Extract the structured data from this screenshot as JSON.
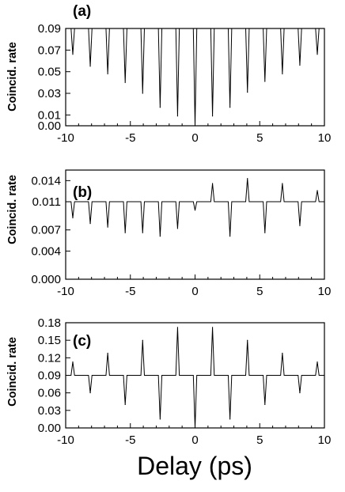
{
  "figure": {
    "xlabel": "Delay (ps)"
  },
  "chart_data": [
    {
      "type": "line",
      "panel_label": "(a)",
      "ylabel": "Coincid. rate",
      "xlim": [
        -10,
        10
      ],
      "ylim": [
        0,
        0.09
      ],
      "xticks": [
        "-10",
        "-5",
        "0",
        "5",
        "10"
      ],
      "yticks": [
        "0.00",
        "0.01",
        "0.03",
        "0.05",
        "0.07",
        "0.09"
      ],
      "ytick_values": [
        0.0,
        0.01,
        0.03,
        0.05,
        0.07,
        0.09
      ],
      "baseline": 0.09,
      "grid": false,
      "series": [
        {
          "x": [
            -9.45,
            -8.1,
            -6.75,
            -5.4,
            -4.05,
            -2.7,
            -1.35,
            0.0,
            1.35,
            2.7,
            4.05,
            5.4,
            6.75,
            8.1,
            9.45
          ],
          "y": [
            0.066,
            0.055,
            0.048,
            0.04,
            0.03,
            0.017,
            0.009,
            0.0,
            0.009,
            0.017,
            0.031,
            0.041,
            0.048,
            0.056,
            0.066
          ]
        }
      ]
    },
    {
      "type": "line",
      "panel_label": "(b)",
      "ylabel": "Coincid. rate",
      "xlim": [
        -10,
        10
      ],
      "ylim": [
        0,
        0.0155
      ],
      "xticks": [
        "-10",
        "-5",
        "0",
        "5",
        "10"
      ],
      "yticks": [
        "0.000",
        "0.004",
        "0.007",
        "0.011",
        "0.014"
      ],
      "ytick_values": [
        0.0,
        0.004,
        0.007,
        0.011,
        0.014
      ],
      "baseline": 0.011,
      "grid": false,
      "series": [
        {
          "x": [
            -9.45,
            -8.1,
            -6.75,
            -5.4,
            -4.05,
            -2.7,
            -1.35,
            0.0,
            1.35,
            2.7,
            4.05,
            5.4,
            6.75,
            8.1,
            9.45
          ],
          "y": [
            0.0087,
            0.0079,
            0.0074,
            0.0066,
            0.0066,
            0.0061,
            0.0072,
            0.0098,
            0.0136,
            0.0061,
            0.0143,
            0.0066,
            0.0136,
            0.0076,
            0.0126
          ]
        }
      ]
    },
    {
      "type": "line",
      "panel_label": "(c)",
      "ylabel": "Coincid. rate",
      "xlim": [
        -10,
        10
      ],
      "ylim": [
        0,
        0.18
      ],
      "xticks": [
        "-10",
        "-5",
        "0",
        "5",
        "10"
      ],
      "yticks": [
        "0.00",
        "0.03",
        "0.06",
        "0.09",
        "0.12",
        "0.15",
        "0.18"
      ],
      "ytick_values": [
        0.0,
        0.03,
        0.06,
        0.09,
        0.12,
        0.15,
        0.18
      ],
      "baseline": 0.09,
      "grid": false,
      "series": [
        {
          "x": [
            -9.45,
            -8.1,
            -6.75,
            -5.4,
            -4.05,
            -2.7,
            -1.35,
            0.0,
            1.35,
            2.7,
            4.05,
            5.4,
            6.75,
            8.1,
            9.45
          ],
          "y": [
            0.113,
            0.06,
            0.128,
            0.04,
            0.15,
            0.015,
            0.172,
            0.0,
            0.172,
            0.015,
            0.15,
            0.04,
            0.128,
            0.06,
            0.113
          ]
        }
      ]
    }
  ]
}
